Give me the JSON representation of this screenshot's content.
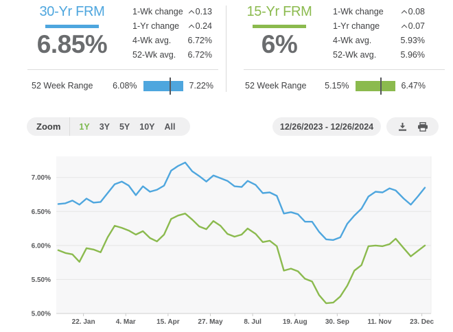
{
  "panels": [
    {
      "title": "30-Yr FRM",
      "rate": "6.85%",
      "accent": "#4EA6DE",
      "stats": [
        {
          "label": "1-Wk change",
          "value": "0.13",
          "up": true
        },
        {
          "label": "1-Yr change",
          "value": "0.24",
          "up": true
        },
        {
          "label": "4-Wk avg.",
          "value": "6.72%",
          "up": false
        },
        {
          "label": "52-Wk avg.",
          "value": "6.72%",
          "up": false
        }
      ],
      "range": {
        "label": "52 Week Range",
        "low": "6.08%",
        "high": "7.22%"
      }
    },
    {
      "title": "15-Yr FRM",
      "rate": "6%",
      "accent": "#8BBA4E",
      "stats": [
        {
          "label": "1-Wk change",
          "value": "0.08",
          "up": true
        },
        {
          "label": "1-Yr change",
          "value": "0.07",
          "up": true
        },
        {
          "label": "4-Wk avg.",
          "value": "5.93%",
          "up": false
        },
        {
          "label": "52-Wk avg.",
          "value": "5.96%",
          "up": false
        }
      ],
      "range": {
        "label": "52 Week Range",
        "low": "5.15%",
        "high": "6.47%"
      }
    }
  ],
  "toolbar": {
    "zoom_label": "Zoom",
    "zoom_options": [
      "1Y",
      "3Y",
      "5Y",
      "10Y",
      "All"
    ],
    "active_zoom": "1Y",
    "date_range": "12/26/2023 - 12/26/2024",
    "icons": [
      "download",
      "print"
    ]
  },
  "chart_data": {
    "type": "line",
    "title": "",
    "xlabel": "",
    "ylabel": "",
    "grid": true,
    "legend": false,
    "x_range": [
      "2023-12-26",
      "2024-12-26"
    ],
    "ylim": [
      5.0,
      7.31
    ],
    "yticks": [
      {
        "value": 5.0,
        "label": "5.00%"
      },
      {
        "value": 5.5,
        "label": "5.50%"
      },
      {
        "value": 6.0,
        "label": "6.00%"
      },
      {
        "value": 6.5,
        "label": "6.50%"
      },
      {
        "value": 7.0,
        "label": "7.00%"
      }
    ],
    "xticks": [
      {
        "date": "2024-01-22",
        "label": "22. Jan"
      },
      {
        "date": "2024-03-04",
        "label": "4. Mar"
      },
      {
        "date": "2024-04-15",
        "label": "15. Apr"
      },
      {
        "date": "2024-05-27",
        "label": "27. May"
      },
      {
        "date": "2024-07-08",
        "label": "8. Jul"
      },
      {
        "date": "2024-08-19",
        "label": "19. Aug"
      },
      {
        "date": "2024-09-30",
        "label": "30. Sep"
      },
      {
        "date": "2024-11-11",
        "label": "11. Nov"
      },
      {
        "date": "2024-12-23",
        "label": "23. Dec"
      }
    ],
    "x": [
      "2023-12-28",
      "2024-01-04",
      "2024-01-11",
      "2024-01-18",
      "2024-01-25",
      "2024-02-01",
      "2024-02-08",
      "2024-02-15",
      "2024-02-22",
      "2024-02-29",
      "2024-03-07",
      "2024-03-14",
      "2024-03-21",
      "2024-03-28",
      "2024-04-04",
      "2024-04-11",
      "2024-04-18",
      "2024-04-25",
      "2024-05-02",
      "2024-05-09",
      "2024-05-16",
      "2024-05-23",
      "2024-05-30",
      "2024-06-06",
      "2024-06-13",
      "2024-06-20",
      "2024-06-27",
      "2024-07-03",
      "2024-07-11",
      "2024-07-18",
      "2024-07-25",
      "2024-08-01",
      "2024-08-08",
      "2024-08-15",
      "2024-08-22",
      "2024-08-29",
      "2024-09-05",
      "2024-09-12",
      "2024-09-19",
      "2024-09-26",
      "2024-10-03",
      "2024-10-10",
      "2024-10-17",
      "2024-10-24",
      "2024-10-31",
      "2024-11-07",
      "2024-11-14",
      "2024-11-21",
      "2024-11-27",
      "2024-12-05",
      "2024-12-12",
      "2024-12-19",
      "2024-12-26"
    ],
    "series": [
      {
        "name": "30-Yr FRM",
        "color": "#4EA6DE",
        "values": [
          6.61,
          6.62,
          6.66,
          6.6,
          6.69,
          6.63,
          6.64,
          6.77,
          6.9,
          6.94,
          6.88,
          6.74,
          6.87,
          6.79,
          6.82,
          6.88,
          7.1,
          7.17,
          7.22,
          7.09,
          7.02,
          6.94,
          7.03,
          6.99,
          6.95,
          6.87,
          6.86,
          6.95,
          6.89,
          6.77,
          6.78,
          6.73,
          6.47,
          6.49,
          6.46,
          6.35,
          6.35,
          6.2,
          6.09,
          6.08,
          6.12,
          6.32,
          6.44,
          6.54,
          6.72,
          6.79,
          6.78,
          6.84,
          6.81,
          6.69,
          6.6,
          6.72,
          6.85
        ]
      },
      {
        "name": "15-Yr FRM",
        "color": "#8BBA4E",
        "values": [
          5.93,
          5.89,
          5.87,
          5.76,
          5.96,
          5.94,
          5.9,
          6.12,
          6.29,
          6.26,
          6.22,
          6.16,
          6.21,
          6.11,
          6.06,
          6.16,
          6.39,
          6.44,
          6.47,
          6.38,
          6.28,
          6.24,
          6.36,
          6.29,
          6.17,
          6.13,
          6.16,
          6.25,
          6.17,
          6.05,
          6.07,
          5.99,
          5.63,
          5.66,
          5.62,
          5.51,
          5.47,
          5.27,
          5.15,
          5.16,
          5.25,
          5.41,
          5.63,
          5.71,
          5.99,
          6.0,
          5.99,
          6.02,
          6.1,
          5.96,
          5.84,
          5.92,
          6.0
        ]
      }
    ]
  }
}
